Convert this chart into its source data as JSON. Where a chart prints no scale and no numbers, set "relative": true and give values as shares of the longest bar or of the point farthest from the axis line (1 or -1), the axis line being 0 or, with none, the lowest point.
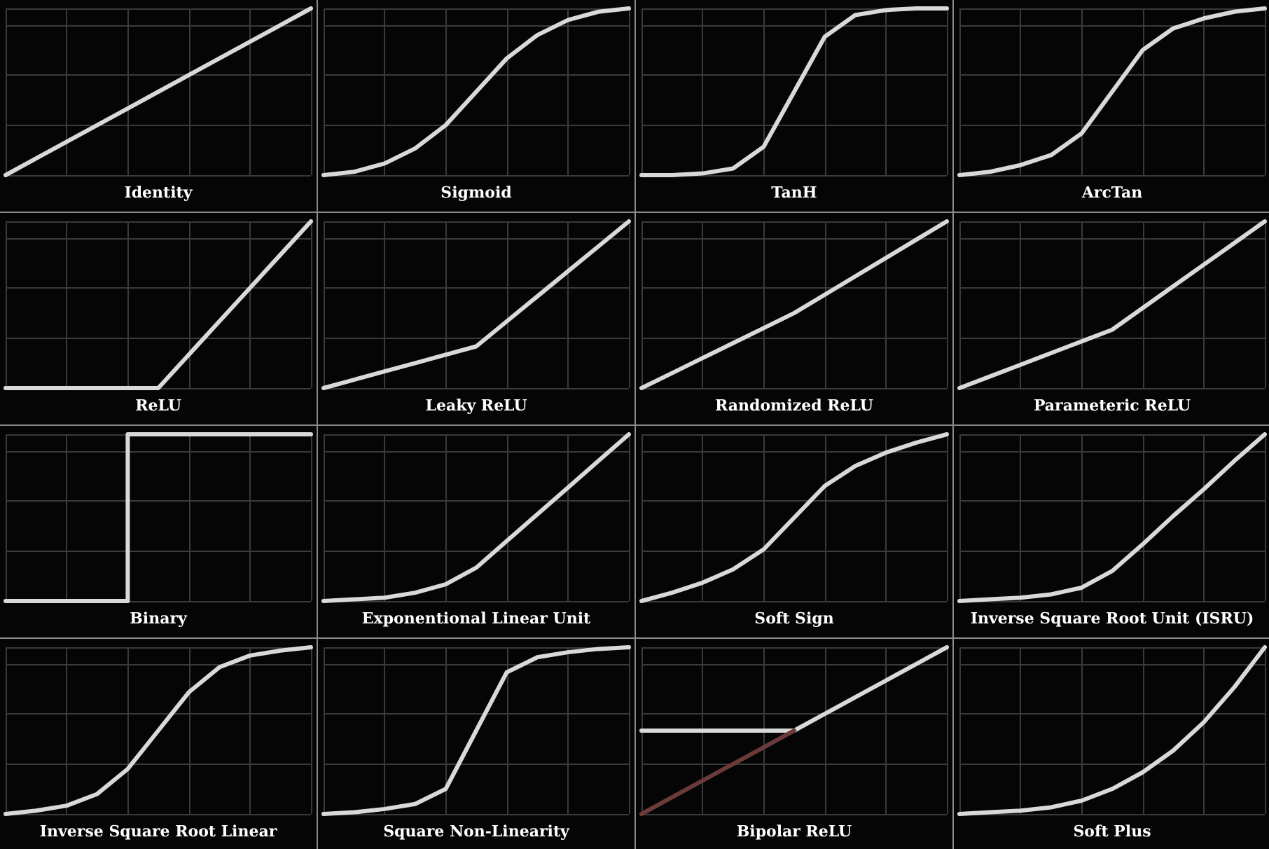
{
  "chart_data": [
    {
      "type": "line",
      "title": "Identity",
      "categories": [
        null,
        null,
        null,
        null,
        null,
        null,
        null,
        null,
        null,
        null,
        null
      ],
      "relative": true,
      "grid": true,
      "marker": "none",
      "series": [
        {
          "color": "#d9d9d9",
          "values": [
            0,
            0.1,
            0.2,
            0.3,
            0.4,
            0.5,
            0.6,
            0.7,
            0.8,
            0.9,
            1
          ]
        }
      ]
    },
    {
      "type": "line",
      "title": "Sigmoid",
      "categories": [
        null,
        null,
        null,
        null,
        null,
        null,
        null,
        null,
        null,
        null,
        null
      ],
      "relative": true,
      "grid": true,
      "marker": "none",
      "series": [
        {
          "color": "#d9d9d9",
          "values": [
            0,
            0.02,
            0.07,
            0.16,
            0.3,
            0.5,
            0.7,
            0.84,
            0.93,
            0.98,
            1
          ]
        }
      ]
    },
    {
      "type": "line",
      "title": "TanH",
      "categories": [
        null,
        null,
        null,
        null,
        null,
        null,
        null,
        null,
        null,
        null,
        null
      ],
      "relative": true,
      "grid": true,
      "marker": "none",
      "series": [
        {
          "color": "#d9d9d9",
          "values": [
            0,
            0,
            0.01,
            0.04,
            0.17,
            0.5,
            0.83,
            0.96,
            0.99,
            1,
            1
          ]
        }
      ]
    },
    {
      "type": "line",
      "title": "ArcTan",
      "categories": [
        null,
        null,
        null,
        null,
        null,
        null,
        null,
        null,
        null,
        null,
        null
      ],
      "relative": true,
      "grid": true,
      "marker": "none",
      "series": [
        {
          "color": "#d9d9d9",
          "values": [
            0,
            0.02,
            0.06,
            0.12,
            0.25,
            0.5,
            0.75,
            0.88,
            0.94,
            0.98,
            1
          ]
        }
      ]
    },
    {
      "type": "line",
      "title": "ReLU",
      "categories": [
        null,
        null,
        null,
        null,
        null,
        null,
        null,
        null,
        null,
        null,
        null
      ],
      "relative": true,
      "grid": true,
      "marker": "none",
      "series": [
        {
          "color": "#d9d9d9",
          "values": [
            0,
            0,
            0,
            0,
            0,
            0,
            0.2,
            0.4,
            0.6,
            0.8,
            1
          ]
        }
      ]
    },
    {
      "type": "line",
      "title": "Leaky ReLU",
      "categories": [
        null,
        null,
        null,
        null,
        null,
        null,
        null,
        null,
        null,
        null,
        null
      ],
      "relative": true,
      "grid": true,
      "marker": "none",
      "series": [
        {
          "color": "#d9d9d9",
          "values": [
            0,
            0.05,
            0.1,
            0.15,
            0.2,
            0.25,
            0.4,
            0.55,
            0.7,
            0.85,
            1
          ]
        }
      ]
    },
    {
      "type": "line",
      "title": "Randomized ReLU",
      "categories": [
        null,
        null,
        null,
        null,
        null,
        null,
        null,
        null,
        null,
        null,
        null
      ],
      "relative": true,
      "grid": true,
      "marker": "none",
      "series": [
        {
          "color": "#d9d9d9",
          "values": [
            0,
            0.09,
            0.18,
            0.27,
            0.36,
            0.45,
            0.56,
            0.67,
            0.78,
            0.89,
            1
          ]
        }
      ]
    },
    {
      "type": "line",
      "title": "Parameteric ReLU",
      "categories": [
        null,
        null,
        null,
        null,
        null,
        null,
        null,
        null,
        null,
        null,
        null
      ],
      "relative": true,
      "grid": true,
      "marker": "none",
      "series": [
        {
          "color": "#d9d9d9",
          "values": [
            0,
            0.07,
            0.14,
            0.21,
            0.28,
            0.35,
            0.48,
            0.61,
            0.74,
            0.87,
            1
          ]
        }
      ]
    },
    {
      "type": "step",
      "title": "Binary",
      "categories": [
        null,
        null,
        null,
        null,
        null,
        null,
        null,
        null,
        null,
        null,
        null
      ],
      "relative": true,
      "grid": true,
      "marker": "none",
      "series": [
        {
          "color": "#d9d9d9",
          "values": [
            0,
            0,
            0,
            0,
            0,
            1,
            1,
            1,
            1,
            1,
            1
          ]
        }
      ]
    },
    {
      "type": "line",
      "title": "Exponentional Linear Unit",
      "categories": [
        null,
        null,
        null,
        null,
        null,
        null,
        null,
        null,
        null,
        null,
        null
      ],
      "relative": true,
      "grid": true,
      "marker": "none",
      "series": [
        {
          "color": "#d9d9d9",
          "values": [
            0,
            0.01,
            0.02,
            0.05,
            0.1,
            0.2,
            0.36,
            0.52,
            0.68,
            0.84,
            1
          ]
        }
      ]
    },
    {
      "type": "line",
      "title": "Soft Sign",
      "categories": [
        null,
        null,
        null,
        null,
        null,
        null,
        null,
        null,
        null,
        null,
        null
      ],
      "relative": true,
      "grid": true,
      "marker": "none",
      "series": [
        {
          "color": "#d9d9d9",
          "values": [
            0,
            0.05,
            0.11,
            0.19,
            0.31,
            0.5,
            0.69,
            0.81,
            0.89,
            0.95,
            1
          ]
        }
      ]
    },
    {
      "type": "line",
      "title": "Inverse Square Root Unit (ISRU)",
      "categories": [
        null,
        null,
        null,
        null,
        null,
        null,
        null,
        null,
        null,
        null,
        null
      ],
      "relative": true,
      "grid": true,
      "marker": "none",
      "series": [
        {
          "color": "#d9d9d9",
          "values": [
            0,
            0.01,
            0.02,
            0.04,
            0.08,
            0.18,
            0.34,
            0.51,
            0.67,
            0.84,
            1
          ]
        }
      ]
    },
    {
      "type": "line",
      "title": "Inverse Square Root Linear",
      "categories": [
        null,
        null,
        null,
        null,
        null,
        null,
        null,
        null,
        null,
        null,
        null
      ],
      "relative": true,
      "grid": true,
      "marker": "none",
      "series": [
        {
          "color": "#d9d9d9",
          "values": [
            0,
            0.02,
            0.05,
            0.12,
            0.27,
            0.5,
            0.73,
            0.88,
            0.95,
            0.98,
            1
          ]
        }
      ]
    },
    {
      "type": "line",
      "title": "Square Non-Linearity",
      "categories": [
        null,
        null,
        null,
        null,
        null,
        null,
        null,
        null,
        null,
        null,
        null
      ],
      "relative": true,
      "grid": true,
      "marker": "none",
      "series": [
        {
          "color": "#d9d9d9",
          "values": [
            0,
            0.01,
            0.03,
            0.06,
            0.15,
            0.5,
            0.85,
            0.94,
            0.97,
            0.99,
            1
          ]
        }
      ]
    },
    {
      "type": "line",
      "title": "Bipolar ReLU",
      "categories": [
        null,
        null,
        null,
        null,
        null,
        null,
        null,
        null,
        null,
        null,
        null
      ],
      "relative": true,
      "grid": true,
      "marker": "none",
      "series": [
        {
          "color": "#d9d9d9",
          "values": [
            0.5,
            0.5,
            0.5,
            0.5,
            0.5,
            0.5,
            0.6,
            0.7,
            0.8,
            0.9,
            1
          ]
        },
        {
          "color": "#6b3b3b",
          "values": [
            0,
            0.1,
            0.2,
            0.3,
            0.4,
            0.5,
            null,
            null,
            null,
            null,
            null
          ]
        }
      ]
    },
    {
      "type": "line",
      "title": "Soft Plus",
      "categories": [
        null,
        null,
        null,
        null,
        null,
        null,
        null,
        null,
        null,
        null,
        null
      ],
      "relative": true,
      "grid": true,
      "marker": "none",
      "series": [
        {
          "color": "#d9d9d9",
          "values": [
            0,
            0.01,
            0.02,
            0.04,
            0.08,
            0.15,
            0.25,
            0.38,
            0.55,
            0.76,
            1
          ]
        }
      ]
    }
  ]
}
